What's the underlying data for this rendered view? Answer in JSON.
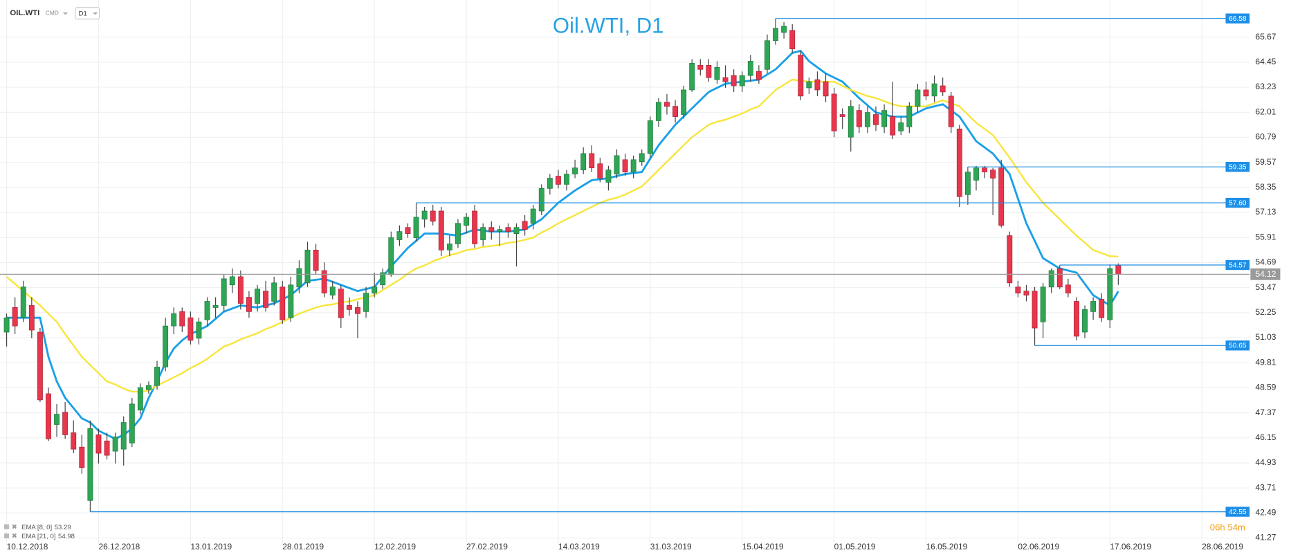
{
  "header": {
    "symbol": "OIL.WTI",
    "market": "CMD",
    "timeframe": "D1"
  },
  "chart_data": {
    "type": "candlestick",
    "title": "Oil.WTI, D1",
    "categories": [
      "10.12.2018",
      null,
      null,
      null,
      null,
      null,
      null,
      null,
      null,
      null,
      null,
      "26.12.2018",
      null,
      null,
      null,
      null,
      null,
      null,
      null,
      null,
      null,
      null,
      "13.01.2019",
      null,
      null,
      null,
      null,
      null,
      null,
      null,
      null,
      null,
      null,
      "28.01.2019",
      null,
      null,
      null,
      null,
      null,
      null,
      null,
      null,
      null,
      null,
      "12.02.2019",
      null,
      null,
      null,
      null,
      null,
      null,
      null,
      null,
      null,
      null,
      "27.02.2019",
      null,
      null,
      null,
      null,
      null,
      null,
      null,
      null,
      null,
      null,
      "14.03.2019",
      null,
      null,
      null,
      null,
      null,
      null,
      null,
      null,
      null,
      null,
      "31.03.2019",
      null,
      null,
      null,
      null,
      null,
      null,
      null,
      null,
      null,
      null,
      "15.04.2019",
      null,
      null,
      null,
      null,
      null,
      null,
      null,
      null,
      null,
      null,
      "01.05.2019",
      null,
      null,
      null,
      null,
      null,
      null,
      null,
      null,
      null,
      null,
      "16.05.2019",
      null,
      null,
      null,
      null,
      null,
      null,
      null,
      null,
      null,
      null,
      "02.06.2019",
      null,
      null,
      null,
      null,
      null,
      null,
      null,
      null,
      null,
      null,
      "17.06.2019",
      null,
      null,
      null,
      null,
      null,
      null,
      null,
      null,
      null,
      null,
      "28.06.2019"
    ],
    "open": [
      51.3,
      52.5,
      52.0,
      52.6,
      51.3,
      48.3,
      46.8,
      47.4,
      46.4,
      45.7,
      43.1,
      46.3,
      46.0,
      45.5,
      45.6,
      45.9,
      47.5,
      48.5,
      48.7,
      49.6,
      51.6,
      52.3,
      52.0,
      51.0,
      51.9,
      52.5,
      52.6,
      53.6,
      54.0,
      53.0,
      52.7,
      53.3,
      52.8,
      53.5,
      52.0,
      53.5,
      53.7,
      55.3,
      54.3,
      53.1,
      53.4,
      52.6,
      52.5,
      52.3,
      53.2,
      53.6,
      54.1,
      55.8,
      56.4,
      55.9,
      56.8,
      57.2,
      57.2,
      55.3,
      55.6,
      56.5,
      57.2,
      55.8,
      56.4,
      56.2,
      56.4,
      56.1,
      56.7,
      56.6,
      57.2,
      58.3,
      58.9,
      58.5,
      59.0,
      59.2,
      60.0,
      59.5,
      58.6,
      59.0,
      59.7,
      59.1,
      59.6,
      60.0,
      61.6,
      62.5,
      62.3,
      61.9,
      63.1,
      64.3,
      64.3,
      63.6,
      63.7,
      63.8,
      63.3,
      63.8,
      64.0,
      64.1,
      65.5,
      65.9,
      66.0,
      64.8,
      63.2,
      63.6,
      63.5,
      62.9,
      61.9,
      60.8,
      62.1,
      61.3,
      61.9,
      61.3,
      61.8,
      61.1,
      61.3,
      62.3,
      63.1,
      62.8,
      63.3,
      62.8,
      61.2,
      58.0,
      58.7,
      59.3,
      59.2,
      59.3,
      56.0,
      53.5,
      53.3,
      53.3,
      51.8,
      53.5,
      54.4,
      53.6,
      52.8,
      51.3,
      52.3,
      52.9,
      51.9,
      54.55,
      null,
      null,
      null,
      null,
      null,
      null,
      null,
      null,
      null,
      null
    ],
    "high": [
      52.2,
      53.0,
      53.8,
      53.0,
      51.5,
      48.6,
      47.8,
      47.9,
      47.0,
      46.3,
      47.0,
      46.6,
      46.4,
      46.4,
      47.2,
      48.1,
      48.8,
      48.9,
      49.9,
      52.0,
      52.5,
      52.5,
      52.3,
      52.0,
      53.0,
      53.0,
      54.1,
      54.4,
      54.3,
      53.3,
      53.6,
      53.8,
      54.0,
      53.8,
      54.0,
      54.8,
      55.7,
      55.6,
      54.7,
      53.8,
      53.6,
      53.0,
      52.8,
      53.5,
      54.2,
      54.4,
      56.2,
      56.5,
      56.6,
      57.6,
      57.4,
      57.5,
      57.4,
      56.0,
      56.8,
      57.1,
      57.5,
      56.6,
      56.7,
      56.5,
      56.6,
      56.6,
      57.0,
      57.5,
      58.5,
      59.0,
      59.2,
      59.2,
      59.7,
      60.3,
      60.4,
      59.8,
      59.4,
      60.2,
      60.0,
      59.9,
      60.2,
      61.8,
      62.7,
      62.9,
      62.6,
      63.3,
      64.6,
      64.6,
      64.6,
      64.5,
      64.3,
      64.1,
      64.0,
      64.8,
      64.3,
      65.8,
      66.58,
      66.4,
      66.3,
      65.0,
      63.7,
      64.0,
      63.9,
      63.2,
      62.2,
      62.6,
      62.4,
      62.3,
      62.3,
      62.4,
      63.5,
      61.8,
      62.5,
      63.4,
      63.5,
      63.8,
      63.7,
      63.0,
      61.4,
      59.35,
      59.4,
      59.4,
      59.3,
      59.7,
      56.2,
      53.8,
      53.6,
      53.5,
      53.7,
      54.4,
      54.57,
      53.9,
      53.0,
      52.6,
      53.0,
      53.2,
      54.6,
      54.65,
      null,
      null,
      null,
      null,
      null,
      null,
      null,
      null,
      null,
      null
    ],
    "low": [
      50.6,
      51.2,
      51.8,
      51.0,
      47.9,
      46.0,
      46.2,
      46.1,
      45.4,
      44.4,
      42.55,
      44.9,
      45.1,
      44.9,
      44.8,
      45.7,
      47.3,
      48.3,
      48.5,
      49.4,
      51.2,
      51.3,
      50.7,
      50.7,
      51.6,
      52.0,
      52.3,
      53.2,
      52.4,
      52.0,
      52.3,
      52.3,
      52.6,
      51.7,
      51.8,
      53.2,
      53.5,
      54.1,
      53.0,
      52.9,
      51.5,
      52.1,
      51.0,
      52.0,
      53.0,
      53.4,
      54.0,
      55.5,
      55.9,
      55.7,
      56.4,
      56.5,
      55.0,
      55.0,
      55.4,
      56.1,
      55.4,
      55.5,
      55.8,
      55.5,
      55.9,
      54.5,
      56.0,
      56.3,
      57.0,
      58.0,
      58.3,
      58.2,
      58.8,
      59.0,
      59.1,
      58.6,
      58.2,
      58.8,
      58.9,
      58.8,
      59.4,
      59.8,
      61.3,
      61.9,
      61.5,
      61.7,
      63.0,
      63.8,
      63.5,
      63.4,
      63.2,
      63.0,
      63.0,
      63.5,
      63.4,
      63.9,
      65.3,
      65.6,
      64.9,
      62.6,
      62.9,
      62.8,
      62.5,
      60.8,
      61.2,
      60.1,
      61.0,
      61.0,
      61.1,
      61.0,
      60.7,
      60.9,
      61.0,
      62.0,
      62.6,
      62.5,
      62.8,
      61.0,
      57.4,
      57.5,
      58.2,
      58.8,
      57.0,
      56.4,
      53.5,
      53.0,
      52.8,
      50.65,
      51.0,
      53.2,
      53.4,
      53.0,
      50.9,
      51.0,
      51.9,
      51.8,
      51.5,
      53.6,
      null,
      null,
      null,
      null,
      null,
      null,
      null,
      null,
      null,
      null
    ],
    "close": [
      52.0,
      51.6,
      53.5,
      51.4,
      48.0,
      46.1,
      47.3,
      46.3,
      45.6,
      44.7,
      46.6,
      45.4,
      45.3,
      46.2,
      46.9,
      47.8,
      48.6,
      48.7,
      49.6,
      51.6,
      52.2,
      51.6,
      50.9,
      51.8,
      52.8,
      52.6,
      53.9,
      54.0,
      52.7,
      52.3,
      53.4,
      52.5,
      53.7,
      51.9,
      53.6,
      54.4,
      55.3,
      54.3,
      53.2,
      53.5,
      52.0,
      52.4,
      52.2,
      53.2,
      53.5,
      54.2,
      55.9,
      56.2,
      56.1,
      56.9,
      57.2,
      56.7,
      55.3,
      55.6,
      56.6,
      56.9,
      55.6,
      56.4,
      56.2,
      56.3,
      56.2,
      56.4,
      56.3,
      57.3,
      58.3,
      58.8,
      58.5,
      59.0,
      59.3,
      60.0,
      59.3,
      58.8,
      59.2,
      59.9,
      59.1,
      59.7,
      60.0,
      61.6,
      62.5,
      62.3,
      61.8,
      63.1,
      64.4,
      64.1,
      63.7,
      64.2,
      63.5,
      63.3,
      63.8,
      64.5,
      63.6,
      65.5,
      66.1,
      66.2,
      65.1,
      62.8,
      63.5,
      63.1,
      62.8,
      61.1,
      61.8,
      62.3,
      61.3,
      62.0,
      61.4,
      62.1,
      60.9,
      61.5,
      62.3,
      63.1,
      62.8,
      63.4,
      63.0,
      61.3,
      57.9,
      59.1,
      59.3,
      59.1,
      58.8,
      56.5,
      53.7,
      53.2,
      53.1,
      51.5,
      53.5,
      54.3,
      53.5,
      53.2,
      51.1,
      52.4,
      52.8,
      52.0,
      54.4,
      54.12,
      null,
      null,
      null,
      null,
      null,
      null,
      null,
      null,
      null,
      null
    ],
    "up_color": "#2ea655",
    "down_color": "#e8364d",
    "series": [
      {
        "name": "EMA [8, 0]",
        "color": "#1aa0e6",
        "last_value": 53.29,
        "values": [
          52.0,
          52.0,
          52.0,
          52.0,
          52.0,
          50.1,
          48.9,
          48.1,
          47.6,
          47.1,
          46.9,
          46.5,
          46.3,
          46.1,
          46.3,
          46.6,
          47.1,
          48.1,
          48.9,
          49.8,
          50.5,
          50.9,
          51.2,
          51.4,
          51.6,
          51.95,
          52.3,
          52.45,
          52.6,
          52.55,
          52.5,
          52.6,
          52.7,
          52.9,
          53.1,
          53.45,
          53.8,
          53.85,
          53.9,
          53.75,
          53.6,
          53.45,
          53.3,
          53.4,
          53.5,
          54.0,
          54.5,
          54.95,
          55.4,
          55.75,
          56.1,
          56.1,
          56.1,
          56.05,
          56.0,
          56.15,
          56.3,
          56.25,
          56.2,
          56.2,
          56.2,
          56.25,
          56.3,
          56.55,
          56.8,
          57.2,
          57.6,
          57.9,
          58.2,
          58.45,
          58.7,
          58.75,
          58.8,
          58.9,
          59.0,
          59.05,
          59.1,
          59.75,
          60.4,
          60.9,
          61.4,
          61.8,
          62.2,
          62.6,
          63.0,
          63.2,
          63.4,
          63.45,
          63.5,
          63.55,
          63.6,
          63.85,
          64.1,
          64.5,
          64.9,
          65.0,
          64.5,
          64.2,
          63.9,
          63.7,
          63.5,
          63.1,
          62.7,
          62.35,
          62.0,
          61.9,
          61.8,
          61.8,
          61.8,
          62.0,
          62.2,
          62.3,
          62.4,
          62.1,
          61.8,
          61.2,
          60.6,
          60.3,
          60.0,
          59.5,
          59.0,
          57.8,
          56.6,
          55.75,
          54.9,
          54.65,
          54.4,
          54.3,
          54.2,
          53.65,
          53.1,
          52.85,
          52.6,
          53.29,
          null,
          null,
          null,
          null,
          null,
          null,
          null,
          null,
          null,
          null
        ]
      },
      {
        "name": "EMA [21, 0]",
        "color": "#f7e53b",
        "last_value": 54.98,
        "values": [
          54.0,
          53.65,
          53.3,
          52.95,
          52.6,
          52.2,
          51.8,
          51.2,
          50.65,
          50.1,
          49.7,
          49.3,
          48.9,
          48.75,
          48.55,
          48.4,
          48.4,
          48.45,
          48.7,
          48.9,
          49.1,
          49.3,
          49.55,
          49.75,
          50.0,
          50.3,
          50.6,
          50.75,
          50.95,
          51.1,
          51.25,
          51.45,
          51.6,
          51.8,
          52.0,
          52.2,
          52.35,
          52.5,
          52.6,
          52.65,
          52.75,
          52.8,
          52.9,
          53.0,
          53.1,
          53.35,
          53.6,
          53.85,
          54.15,
          54.4,
          54.55,
          54.75,
          54.9,
          55.05,
          55.15,
          55.3,
          55.35,
          55.45,
          55.5,
          55.55,
          55.65,
          55.7,
          55.8,
          55.9,
          56.15,
          56.35,
          56.6,
          56.8,
          57.0,
          57.2,
          57.4,
          57.6,
          57.75,
          57.85,
          58.0,
          58.2,
          58.4,
          58.8,
          59.2,
          59.6,
          60.0,
          60.4,
          60.8,
          61.1,
          61.4,
          61.55,
          61.65,
          61.8,
          61.95,
          62.15,
          62.3,
          62.7,
          63.1,
          63.35,
          63.6,
          63.55,
          63.5,
          63.5,
          63.5,
          63.5,
          63.3,
          63.1,
          62.95,
          62.8,
          62.7,
          62.55,
          62.4,
          62.3,
          62.3,
          62.3,
          62.3,
          62.45,
          62.6,
          62.45,
          62.3,
          61.9,
          61.5,
          61.2,
          60.9,
          60.35,
          59.8,
          59.2,
          58.6,
          58.1,
          57.6,
          57.2,
          56.8,
          56.4,
          56.0,
          55.65,
          55.3,
          55.15,
          55.0,
          54.98,
          null,
          null,
          null,
          null,
          null,
          null,
          null,
          null,
          null,
          null
        ]
      }
    ],
    "levels": [
      66.58,
      59.35,
      {
        "value": 57.6,
        "label": "57.60"
      },
      54.57,
      50.65,
      42.55
    ],
    "level_color": "#1e8fe6",
    "current_price": 54.12,
    "current_color": "#9a9a9a",
    "ylim": [
      40.91,
      67.48
    ],
    "yticks": [
      41.27,
      42.49,
      43.71,
      44.93,
      46.15,
      47.37,
      48.59,
      49.81,
      51.03,
      52.25,
      53.47,
      54.69,
      55.91,
      57.13,
      58.35,
      59.57,
      60.79,
      62.01,
      63.23,
      64.45,
      65.67
    ],
    "grid": true,
    "countdown": "06h 54m"
  }
}
